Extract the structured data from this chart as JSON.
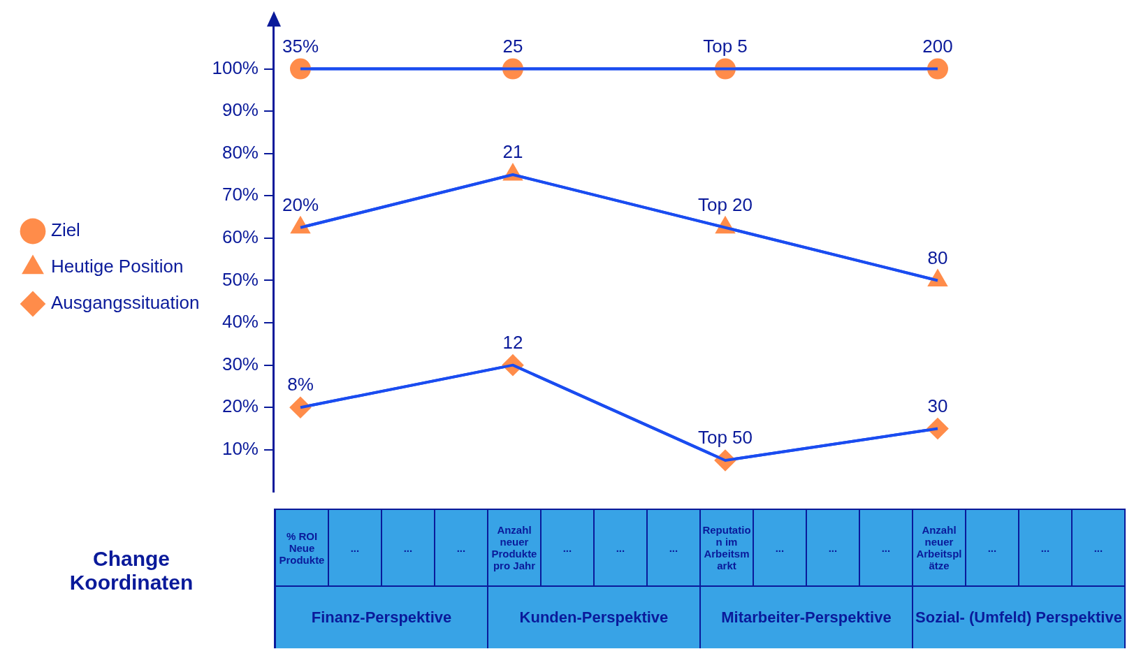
{
  "chart_data": {
    "type": "line",
    "xlabel": "Change Koordinaten",
    "categories": [
      "% ROI Neue Produkte",
      "...",
      "...",
      "...",
      "Anzahl neuer Produkte pro Jahr",
      "...",
      "...",
      "...",
      "Reputation im Arbeitsmarkt",
      "...",
      "...",
      "...",
      "Anzahl neuer Arbeitsplätze",
      "...",
      "...",
      "..."
    ],
    "series": [
      {
        "name": "Ziel",
        "color": "#1a4cf0",
        "colors": [
          "#ff8c4a",
          null,
          null,
          null,
          "#ff8c4a",
          null,
          null,
          null,
          "#ff8c4a",
          null,
          null,
          null,
          "#ff8c4a",
          null,
          null,
          null
        ],
        "marker": "circle",
        "values": [
          100,
          null,
          null,
          null,
          100,
          null,
          null,
          null,
          100,
          null,
          null,
          null,
          100,
          null,
          null,
          null
        ]
      },
      {
        "name": "Heutige Position",
        "color": "#1a4cf0",
        "colors": [
          "#ff8c4a",
          null,
          null,
          null,
          "#ff8c4a",
          null,
          null,
          null,
          "#ff8c4a",
          null,
          null,
          null,
          "#ff8c4a",
          null,
          null,
          null
        ],
        "marker": "triangle",
        "values": [
          62.5,
          null,
          null,
          null,
          75,
          null,
          null,
          null,
          62.5,
          null,
          null,
          null,
          50,
          null,
          null,
          null
        ]
      },
      {
        "name": "Ausgangssituation",
        "color": "#1a4cf0",
        "colors": [
          "#ff8c4a",
          null,
          null,
          null,
          "#ff8c4a",
          null,
          null,
          null,
          "#ff8c4a",
          null,
          null,
          null,
          "#ff8c4a",
          null,
          null,
          null
        ],
        "marker": "diamond",
        "values": [
          20,
          null,
          null,
          null,
          30,
          null,
          null,
          null,
          7.5,
          null,
          null,
          null,
          15,
          null,
          null,
          null
        ]
      }
    ],
    "ylim": [
      0,
      110
    ],
    "yticks": [
      {
        "value": 10,
        "label": "10%"
      },
      {
        "value": 20,
        "label": "20%"
      },
      {
        "value": 30,
        "label": "30%"
      },
      {
        "value": 40,
        "label": "40%"
      },
      {
        "value": 50,
        "label": "50%"
      },
      {
        "value": 60,
        "label": "60%"
      },
      {
        "value": 70,
        "label": "70%"
      },
      {
        "value": 80,
        "label": "80%"
      },
      {
        "value": 90,
        "label": "90%"
      },
      {
        "value": 100,
        "label": "100%"
      }
    ],
    "grid": false,
    "legend": "left",
    "annotations": [
      "Finanz-Perspektive",
      "Kunden-Perspektive",
      "Mitarbeiter-Perspektive",
      "Sozial- (Umfeld) Perspektive",
      {
        "text": "35%",
        "x": "% ROI Neue Produkte",
        "y": 100
      },
      {
        "text": "25",
        "x": "Anzahl neuer Produkte pro Jahr",
        "y": 100
      },
      {
        "text": "Top 5",
        "x": "Reputation im Arbeitsmarkt",
        "y": 100
      },
      {
        "text": "200",
        "x": "Anzahl neuer Arbeitsplätze",
        "y": 100
      },
      {
        "text": "20%",
        "x": "% ROI Neue Produkte",
        "y": 62.5
      },
      {
        "text": "21",
        "x": "Anzahl neuer Produkte pro Jahr",
        "y": 75
      },
      {
        "text": "Top 20",
        "x": "Reputation im Arbeitsmarkt",
        "y": 62.5
      },
      {
        "text": "80",
        "x": "Anzahl neuer Arbeitsplätze",
        "y": 50
      },
      {
        "text": "8%",
        "x": "% ROI Neue Produkte",
        "y": 20
      },
      {
        "text": "12",
        "x": "Anzahl neuer Produkte pro Jahr",
        "y": 30
      },
      {
        "text": "Top 50",
        "x": "Reputation im Arbeitsmarkt",
        "y": 7.5
      },
      {
        "text": "30",
        "x": "Anzahl neuer Arbeitsplätze",
        "y": 15
      }
    ]
  }
}
